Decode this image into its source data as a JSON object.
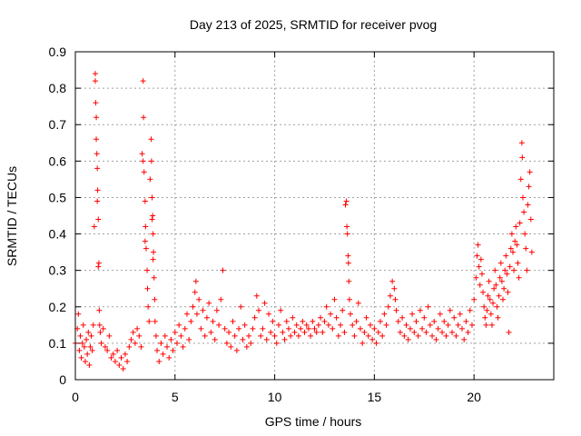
{
  "chart_data": {
    "type": "scatter",
    "title": "Day 213 of 2025, SRMTID for receiver pvog",
    "xlabel": "GPS time / hours",
    "ylabel": "SRMTID / TECUs",
    "xlim": [
      0,
      24
    ],
    "ylim": [
      0,
      0.9
    ],
    "xticks": [
      0,
      5,
      10,
      15,
      20
    ],
    "xtick_labels": [
      "0",
      "5",
      "10",
      "15",
      "20"
    ],
    "yticks": [
      0,
      0.1,
      0.2,
      0.3,
      0.4,
      0.5,
      0.6,
      0.7,
      0.8,
      0.9
    ],
    "ytick_labels": [
      "0",
      "0.1",
      "0.2",
      "0.3",
      "0.4",
      "0.5",
      "0.6",
      "0.7",
      "0.8",
      "0.9"
    ],
    "grid": true,
    "marker": "+",
    "color": "#ff0000",
    "series": [
      {
        "name": "SRMTID",
        "points": [
          [
            0.0,
            0.1
          ],
          [
            0.1,
            0.14
          ],
          [
            0.15,
            0.18
          ],
          [
            0.2,
            0.08
          ],
          [
            0.25,
            0.12
          ],
          [
            0.3,
            0.06
          ],
          [
            0.35,
            0.1
          ],
          [
            0.4,
            0.15
          ],
          [
            0.45,
            0.09
          ],
          [
            0.5,
            0.05
          ],
          [
            0.55,
            0.11
          ],
          [
            0.6,
            0.07
          ],
          [
            0.65,
            0.13
          ],
          [
            0.7,
            0.04
          ],
          [
            0.75,
            0.09
          ],
          [
            0.8,
            0.12
          ],
          [
            0.85,
            0.08
          ],
          [
            0.9,
            0.15
          ],
          [
            0.95,
            0.42
          ],
          [
            1.0,
            0.82
          ],
          [
            1.02,
            0.76
          ],
          [
            1.05,
            0.72
          ],
          [
            1.08,
            0.62
          ],
          [
            1.1,
            0.58
          ],
          [
            1.12,
            0.52
          ],
          [
            1.15,
            0.44
          ],
          [
            1.18,
            0.32
          ],
          [
            1.2,
            0.19
          ],
          [
            1.22,
            0.15
          ],
          [
            1.25,
            0.13
          ],
          [
            1.0,
            0.84
          ],
          [
            1.05,
            0.66
          ],
          [
            1.1,
            0.49
          ],
          [
            1.15,
            0.31
          ],
          [
            1.3,
            0.1
          ],
          [
            1.4,
            0.14
          ],
          [
            1.5,
            0.09
          ],
          [
            1.6,
            0.08
          ],
          [
            1.7,
            0.12
          ],
          [
            1.8,
            0.06
          ],
          [
            1.9,
            0.07
          ],
          [
            2.0,
            0.05
          ],
          [
            2.1,
            0.08
          ],
          [
            2.2,
            0.04
          ],
          [
            2.3,
            0.06
          ],
          [
            2.4,
            0.03
          ],
          [
            2.5,
            0.07
          ],
          [
            2.6,
            0.05
          ],
          [
            2.7,
            0.09
          ],
          [
            2.8,
            0.11
          ],
          [
            2.9,
            0.13
          ],
          [
            3.0,
            0.1
          ],
          [
            3.1,
            0.14
          ],
          [
            3.2,
            0.12
          ],
          [
            3.3,
            0.09
          ],
          [
            3.35,
            0.62
          ],
          [
            3.4,
            0.82
          ],
          [
            3.42,
            0.72
          ],
          [
            3.45,
            0.57
          ],
          [
            3.5,
            0.49
          ],
          [
            3.52,
            0.42
          ],
          [
            3.55,
            0.36
          ],
          [
            3.6,
            0.3
          ],
          [
            3.62,
            0.25
          ],
          [
            3.65,
            0.2
          ],
          [
            3.7,
            0.16
          ],
          [
            3.4,
            0.6
          ],
          [
            3.5,
            0.38
          ],
          [
            3.75,
            0.55
          ],
          [
            3.8,
            0.66
          ],
          [
            3.82,
            0.6
          ],
          [
            3.85,
            0.5
          ],
          [
            3.88,
            0.45
          ],
          [
            3.9,
            0.4
          ],
          [
            3.92,
            0.35
          ],
          [
            3.95,
            0.28
          ],
          [
            3.98,
            0.22
          ],
          [
            4.0,
            0.16
          ],
          [
            4.05,
            0.12
          ],
          [
            3.85,
            0.44
          ],
          [
            3.9,
            0.33
          ],
          [
            4.1,
            0.08
          ],
          [
            4.2,
            0.05
          ],
          [
            4.3,
            0.1
          ],
          [
            4.4,
            0.07
          ],
          [
            4.5,
            0.12
          ],
          [
            4.6,
            0.09
          ],
          [
            4.7,
            0.06
          ],
          [
            4.8,
            0.11
          ],
          [
            4.9,
            0.08
          ],
          [
            5.0,
            0.13
          ],
          [
            5.1,
            0.1
          ],
          [
            5.2,
            0.15
          ],
          [
            5.3,
            0.12
          ],
          [
            5.4,
            0.09
          ],
          [
            5.5,
            0.14
          ],
          [
            5.6,
            0.18
          ],
          [
            5.7,
            0.11
          ],
          [
            5.8,
            0.16
          ],
          [
            5.9,
            0.2
          ],
          [
            6.0,
            0.24
          ],
          [
            6.05,
            0.27
          ],
          [
            6.1,
            0.18
          ],
          [
            6.2,
            0.22
          ],
          [
            6.3,
            0.14
          ],
          [
            6.4,
            0.19
          ],
          [
            6.5,
            0.12
          ],
          [
            6.6,
            0.17
          ],
          [
            6.7,
            0.21
          ],
          [
            6.8,
            0.13
          ],
          [
            6.9,
            0.16
          ],
          [
            7.0,
            0.11
          ],
          [
            7.1,
            0.19
          ],
          [
            7.2,
            0.15
          ],
          [
            7.3,
            0.22
          ],
          [
            7.4,
            0.3
          ],
          [
            7.5,
            0.14
          ],
          [
            7.6,
            0.1
          ],
          [
            7.7,
            0.13
          ],
          [
            7.8,
            0.09
          ],
          [
            7.9,
            0.16
          ],
          [
            8.0,
            0.12
          ],
          [
            8.1,
            0.08
          ],
          [
            8.2,
            0.14
          ],
          [
            8.3,
            0.2
          ],
          [
            8.4,
            0.11
          ],
          [
            8.5,
            0.15
          ],
          [
            8.6,
            0.09
          ],
          [
            8.7,
            0.12
          ],
          [
            8.8,
            0.1
          ],
          [
            8.9,
            0.14
          ],
          [
            9.0,
            0.17
          ],
          [
            9.1,
            0.23
          ],
          [
            9.2,
            0.19
          ],
          [
            9.3,
            0.12
          ],
          [
            9.4,
            0.14
          ],
          [
            9.5,
            0.21
          ],
          [
            9.6,
            0.11
          ],
          [
            9.7,
            0.18
          ],
          [
            9.8,
            0.13
          ],
          [
            9.9,
            0.16
          ],
          [
            10.0,
            0.12
          ],
          [
            10.1,
            0.1
          ],
          [
            10.2,
            0.15
          ],
          [
            10.3,
            0.19
          ],
          [
            10.4,
            0.13
          ],
          [
            10.5,
            0.11
          ],
          [
            10.6,
            0.16
          ],
          [
            10.7,
            0.14
          ],
          [
            10.8,
            0.12
          ],
          [
            10.9,
            0.17
          ],
          [
            11.0,
            0.13
          ],
          [
            11.1,
            0.15
          ],
          [
            11.2,
            0.12
          ],
          [
            11.3,
            0.14
          ],
          [
            11.4,
            0.16
          ],
          [
            11.5,
            0.13
          ],
          [
            11.6,
            0.15
          ],
          [
            11.7,
            0.14
          ],
          [
            11.8,
            0.12
          ],
          [
            11.9,
            0.16
          ],
          [
            12.0,
            0.14
          ],
          [
            12.1,
            0.13
          ],
          [
            12.2,
            0.15
          ],
          [
            12.3,
            0.17
          ],
          [
            12.4,
            0.13
          ],
          [
            12.5,
            0.16
          ],
          [
            12.6,
            0.2
          ],
          [
            12.7,
            0.15
          ],
          [
            12.8,
            0.18
          ],
          [
            12.9,
            0.14
          ],
          [
            13.0,
            0.22
          ],
          [
            13.1,
            0.17
          ],
          [
            13.2,
            0.12
          ],
          [
            13.3,
            0.15
          ],
          [
            13.4,
            0.19
          ],
          [
            13.5,
            0.13
          ],
          [
            13.55,
            0.48
          ],
          [
            13.6,
            0.49
          ],
          [
            13.62,
            0.42
          ],
          [
            13.65,
            0.4
          ],
          [
            13.68,
            0.34
          ],
          [
            13.7,
            0.32
          ],
          [
            13.72,
            0.27
          ],
          [
            13.75,
            0.22
          ],
          [
            13.8,
            0.18
          ],
          [
            13.9,
            0.15
          ],
          [
            14.0,
            0.12
          ],
          [
            14.1,
            0.16
          ],
          [
            14.2,
            0.21
          ],
          [
            14.3,
            0.14
          ],
          [
            14.4,
            0.1
          ],
          [
            14.5,
            0.13
          ],
          [
            14.6,
            0.17
          ],
          [
            14.7,
            0.12
          ],
          [
            14.8,
            0.15
          ],
          [
            14.9,
            0.11
          ],
          [
            15.0,
            0.14
          ],
          [
            15.1,
            0.1
          ],
          [
            15.2,
            0.13
          ],
          [
            15.3,
            0.16
          ],
          [
            15.4,
            0.12
          ],
          [
            15.5,
            0.18
          ],
          [
            15.6,
            0.15
          ],
          [
            15.7,
            0.2
          ],
          [
            15.8,
            0.23
          ],
          [
            15.9,
            0.27
          ],
          [
            16.0,
            0.25
          ],
          [
            16.05,
            0.22
          ],
          [
            16.1,
            0.19
          ],
          [
            16.2,
            0.16
          ],
          [
            16.3,
            0.13
          ],
          [
            16.4,
            0.17
          ],
          [
            16.5,
            0.12
          ],
          [
            16.6,
            0.15
          ],
          [
            16.7,
            0.11
          ],
          [
            16.8,
            0.14
          ],
          [
            16.9,
            0.18
          ],
          [
            17.0,
            0.13
          ],
          [
            17.1,
            0.16
          ],
          [
            17.2,
            0.12
          ],
          [
            17.3,
            0.19
          ],
          [
            17.4,
            0.14
          ],
          [
            17.5,
            0.17
          ],
          [
            17.6,
            0.13
          ],
          [
            17.7,
            0.2
          ],
          [
            17.8,
            0.15
          ],
          [
            17.9,
            0.12
          ],
          [
            18.0,
            0.16
          ],
          [
            18.1,
            0.11
          ],
          [
            18.2,
            0.14
          ],
          [
            18.3,
            0.18
          ],
          [
            18.4,
            0.13
          ],
          [
            18.5,
            0.16
          ],
          [
            18.6,
            0.12
          ],
          [
            18.7,
            0.15
          ],
          [
            18.8,
            0.19
          ],
          [
            18.9,
            0.13
          ],
          [
            19.0,
            0.17
          ],
          [
            19.1,
            0.12
          ],
          [
            19.2,
            0.15
          ],
          [
            19.3,
            0.18
          ],
          [
            19.4,
            0.14
          ],
          [
            19.5,
            0.11
          ],
          [
            19.6,
            0.16
          ],
          [
            19.7,
            0.13
          ],
          [
            19.8,
            0.19
          ],
          [
            19.9,
            0.15
          ],
          [
            20.0,
            0.22
          ],
          [
            20.1,
            0.28
          ],
          [
            20.15,
            0.34
          ],
          [
            20.2,
            0.37
          ],
          [
            20.25,
            0.31
          ],
          [
            20.3,
            0.26
          ],
          [
            20.35,
            0.33
          ],
          [
            20.4,
            0.29
          ],
          [
            20.45,
            0.24
          ],
          [
            20.5,
            0.2
          ],
          [
            20.55,
            0.17
          ],
          [
            20.6,
            0.15
          ],
          [
            20.65,
            0.19
          ],
          [
            20.7,
            0.23
          ],
          [
            20.75,
            0.27
          ],
          [
            20.8,
            0.22
          ],
          [
            20.85,
            0.18
          ],
          [
            20.9,
            0.15
          ],
          [
            20.95,
            0.21
          ],
          [
            21.0,
            0.25
          ],
          [
            21.05,
            0.3
          ],
          [
            21.1,
            0.26
          ],
          [
            21.15,
            0.2
          ],
          [
            21.2,
            0.17
          ],
          [
            21.25,
            0.23
          ],
          [
            21.3,
            0.28
          ],
          [
            21.35,
            0.32
          ],
          [
            21.4,
            0.27
          ],
          [
            21.45,
            0.22
          ],
          [
            21.5,
            0.25
          ],
          [
            21.55,
            0.3
          ],
          [
            21.6,
            0.34
          ],
          [
            21.65,
            0.29
          ],
          [
            21.7,
            0.24
          ],
          [
            21.75,
            0.13
          ],
          [
            21.8,
            0.31
          ],
          [
            21.85,
            0.36
          ],
          [
            21.9,
            0.4
          ],
          [
            21.95,
            0.35
          ],
          [
            22.0,
            0.3
          ],
          [
            22.05,
            0.38
          ],
          [
            22.1,
            0.42
          ],
          [
            22.15,
            0.37
          ],
          [
            22.2,
            0.32
          ],
          [
            22.25,
            0.28
          ],
          [
            22.3,
            0.43
          ],
          [
            22.35,
            0.55
          ],
          [
            22.4,
            0.65
          ],
          [
            22.42,
            0.61
          ],
          [
            22.45,
            0.5
          ],
          [
            22.5,
            0.46
          ],
          [
            22.55,
            0.4
          ],
          [
            22.6,
            0.36
          ],
          [
            22.65,
            0.3
          ],
          [
            22.7,
            0.48
          ],
          [
            22.75,
            0.53
          ],
          [
            22.8,
            0.57
          ],
          [
            22.85,
            0.44
          ],
          [
            22.9,
            0.35
          ]
        ]
      }
    ]
  }
}
